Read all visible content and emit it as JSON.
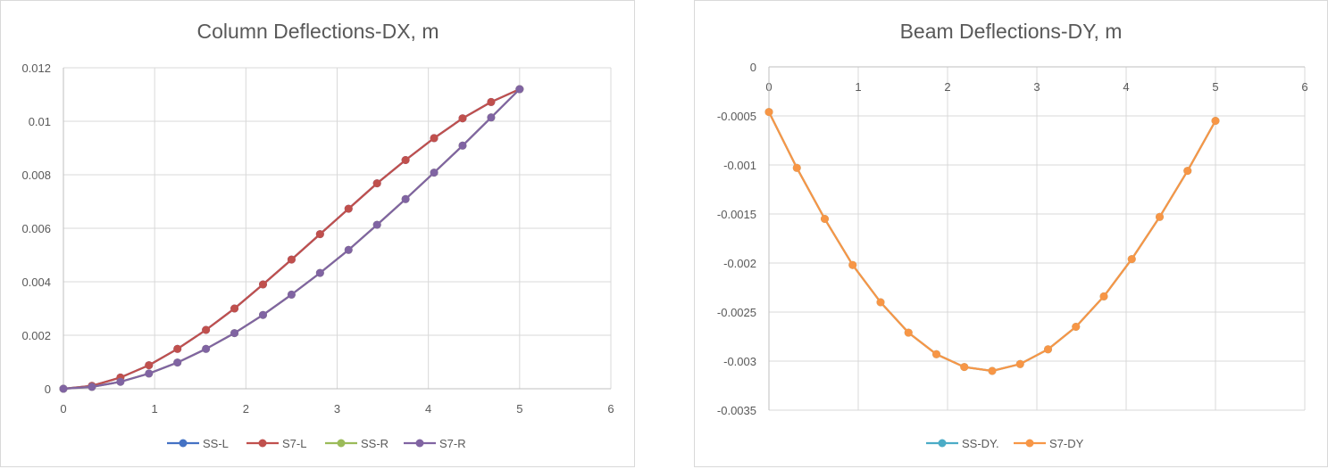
{
  "charts": [
    {
      "title": "Column Deflections-DX, m",
      "chart_data": {
        "type": "scatter",
        "title": "Column Deflections-DX, m",
        "xlim": [
          0,
          6
        ],
        "ylim": [
          0,
          0.012
        ],
        "x_ticks": [
          "0",
          "1",
          "2",
          "3",
          "4",
          "5",
          "6"
        ],
        "y_ticks": [
          "0",
          "0.002",
          "0.004",
          "0.006",
          "0.008",
          "0.01",
          "0.012"
        ],
        "grid": true,
        "legend_position": "bottom",
        "series": [
          {
            "name": "SS-L",
            "color": "#4472c4",
            "x": [
              0,
              0.3125,
              0.625,
              0.9375,
              1.25,
              1.5625,
              1.875,
              2.1875,
              2.5,
              2.8125,
              3.125,
              3.4375,
              3.75,
              4.0625,
              4.375,
              4.6875,
              5
            ],
            "y": [
              0,
              0.00011,
              0.00042,
              0.00088,
              0.00149,
              0.0022,
              0.003,
              0.0039,
              0.00483,
              0.00578,
              0.00673,
              0.00768,
              0.00855,
              0.00937,
              0.01011,
              0.01072,
              0.0112
            ]
          },
          {
            "name": "S7-L",
            "color": "#c0504d",
            "x": [
              0,
              0.3125,
              0.625,
              0.9375,
              1.25,
              1.5625,
              1.875,
              2.1875,
              2.5,
              2.8125,
              3.125,
              3.4375,
              3.75,
              4.0625,
              4.375,
              4.6875,
              5
            ],
            "y": [
              0,
              0.00011,
              0.00042,
              0.00088,
              0.00149,
              0.0022,
              0.003,
              0.0039,
              0.00483,
              0.00578,
              0.00673,
              0.00768,
              0.00855,
              0.00937,
              0.01011,
              0.01072,
              0.0112
            ]
          },
          {
            "name": "SS-R",
            "color": "#9bbb59",
            "x": [
              0,
              0.3125,
              0.625,
              0.9375,
              1.25,
              1.5625,
              1.875,
              2.1875,
              2.5,
              2.8125,
              3.125,
              3.4375,
              3.75,
              4.0625,
              4.375,
              4.6875,
              5
            ],
            "y": [
              0,
              7e-05,
              0.00026,
              0.00057,
              0.00098,
              0.00149,
              0.00208,
              0.00276,
              0.00352,
              0.00433,
              0.00519,
              0.00613,
              0.00709,
              0.00808,
              0.00909,
              0.01014,
              0.0112
            ]
          },
          {
            "name": "S7-R",
            "color": "#8064a2",
            "x": [
              0,
              0.3125,
              0.625,
              0.9375,
              1.25,
              1.5625,
              1.875,
              2.1875,
              2.5,
              2.8125,
              3.125,
              3.4375,
              3.75,
              4.0625,
              4.375,
              4.6875,
              5
            ],
            "y": [
              0,
              7e-05,
              0.00026,
              0.00057,
              0.00098,
              0.00149,
              0.00208,
              0.00276,
              0.00352,
              0.00433,
              0.00519,
              0.00613,
              0.00709,
              0.00808,
              0.00909,
              0.01014,
              0.0112
            ]
          }
        ]
      }
    },
    {
      "title": "Beam Deflections-DY, m",
      "chart_data": {
        "type": "scatter",
        "title": "Beam Deflections-DY, m",
        "xlim": [
          0,
          6
        ],
        "ylim": [
          -0.0035,
          0
        ],
        "x_ticks": [
          "0",
          "1",
          "2",
          "3",
          "4",
          "5",
          "6"
        ],
        "y_ticks": [
          "0",
          "-0.0005",
          "-0.001",
          "-0.0015",
          "-0.002",
          "-0.0025",
          "-0.003",
          "-0.0035"
        ],
        "x_axis_at_top": true,
        "grid": true,
        "legend_position": "bottom",
        "series": [
          {
            "name": "SS-DY.",
            "color": "#4bacc6",
            "x": [
              0,
              0.3125,
              0.625,
              0.9375,
              1.25,
              1.5625,
              1.875,
              2.1875,
              2.5,
              2.8125,
              3.125,
              3.4375,
              3.75,
              4.0625,
              4.375,
              4.6875,
              5
            ],
            "y": [
              -0.00046,
              -0.00103,
              -0.00155,
              -0.00202,
              -0.0024,
              -0.00271,
              -0.00293,
              -0.00306,
              -0.0031,
              -0.00303,
              -0.00288,
              -0.00265,
              -0.00234,
              -0.00196,
              -0.00153,
              -0.00106,
              -0.00055
            ]
          },
          {
            "name": "S7-DY",
            "color": "#f79646",
            "x": [
              0,
              0.3125,
              0.625,
              0.9375,
              1.25,
              1.5625,
              1.875,
              2.1875,
              2.5,
              2.8125,
              3.125,
              3.4375,
              3.75,
              4.0625,
              4.375,
              4.6875,
              5
            ],
            "y": [
              -0.00046,
              -0.00103,
              -0.00155,
              -0.00202,
              -0.0024,
              -0.00271,
              -0.00293,
              -0.00306,
              -0.0031,
              -0.00303,
              -0.00288,
              -0.00265,
              -0.00234,
              -0.00196,
              -0.00153,
              -0.00106,
              -0.00055
            ]
          }
        ]
      }
    }
  ]
}
